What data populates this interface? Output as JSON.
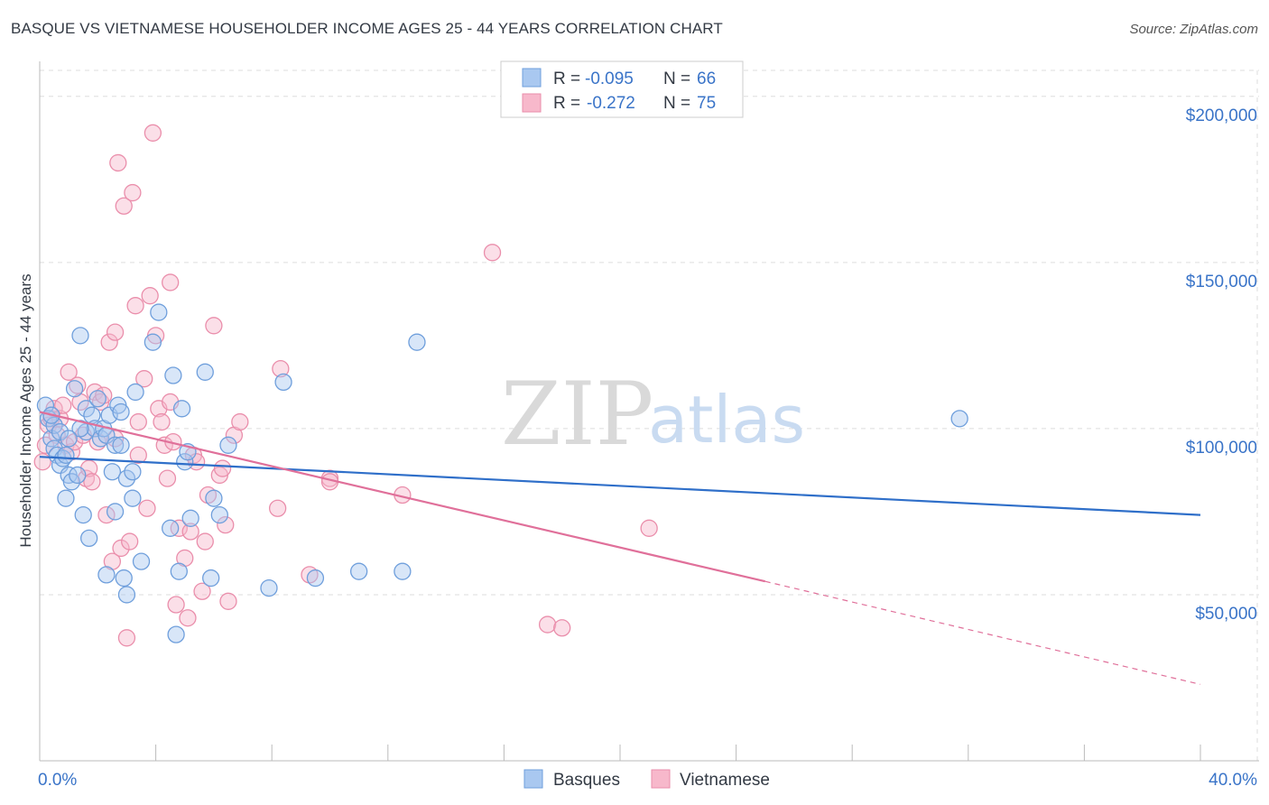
{
  "title": "BASQUE VS VIETNAMESE HOUSEHOLDER INCOME AGES 25 - 44 YEARS CORRELATION CHART",
  "source": "Source: ZipAtlas.com",
  "watermark": {
    "zip": "ZIP",
    "atlas": "atlas"
  },
  "colors": {
    "basque_fill": "#a9c8f0",
    "basque_stroke": "#6f9fdc",
    "basque_line": "#2f6fc9",
    "viet_fill": "#f7b8cb",
    "viet_stroke": "#ea8eab",
    "viet_line": "#e0709a",
    "grid": "#dddddd",
    "axis_text": "#3a74c8"
  },
  "legend": {
    "r_label": "R =",
    "n_label": "N =",
    "rows": [
      {
        "r": "-0.095",
        "n": "66"
      },
      {
        "r": "-0.272",
        "n": "75"
      }
    ]
  },
  "chart_data": {
    "type": "scatter",
    "title": "BASQUE VS VIETNAMESE HOUSEHOLDER INCOME AGES 25 - 44 YEARS CORRELATION CHART",
    "xlabel": "",
    "ylabel": "Householder Income Ages 25 - 44 years",
    "xlim": [
      0,
      40
    ],
    "ylim": [
      0,
      210000
    ],
    "x_tick_labels": [
      "0.0%",
      "40.0%"
    ],
    "y_ticks": [
      50000,
      100000,
      150000,
      200000
    ],
    "y_tick_labels": [
      "$50,000",
      "$100,000",
      "$150,000",
      "$200,000"
    ],
    "grid": true,
    "legend_position": "bottom-center",
    "series": [
      {
        "name": "Basques",
        "r": -0.095,
        "n": 66,
        "trend": {
          "x0": 0,
          "y0": 91500,
          "x1": 40,
          "y1": 74000
        },
        "points": [
          [
            0.2,
            107000
          ],
          [
            0.3,
            103000
          ],
          [
            0.4,
            97000
          ],
          [
            0.5,
            94000
          ],
          [
            0.5,
            101000
          ],
          [
            0.6,
            92000
          ],
          [
            0.7,
            89000
          ],
          [
            0.7,
            99000
          ],
          [
            0.8,
            91000
          ],
          [
            0.9,
            79000
          ],
          [
            0.9,
            92000
          ],
          [
            1.0,
            86000
          ],
          [
            1.1,
            84000
          ],
          [
            1.2,
            112000
          ],
          [
            1.3,
            86000
          ],
          [
            1.4,
            128000
          ],
          [
            1.5,
            74000
          ],
          [
            1.6,
            99000
          ],
          [
            1.6,
            106000
          ],
          [
            1.7,
            67000
          ],
          [
            1.8,
            104000
          ],
          [
            1.9,
            100000
          ],
          [
            2.0,
            109000
          ],
          [
            2.1,
            97000
          ],
          [
            2.2,
            100000
          ],
          [
            2.3,
            98000
          ],
          [
            2.3,
            56000
          ],
          [
            2.4,
            104000
          ],
          [
            2.5,
            87000
          ],
          [
            2.6,
            95000
          ],
          [
            2.6,
            75000
          ],
          [
            2.7,
            107000
          ],
          [
            2.8,
            105000
          ],
          [
            2.8,
            95000
          ],
          [
            2.9,
            55000
          ],
          [
            3.0,
            50000
          ],
          [
            3.0,
            85000
          ],
          [
            3.2,
            79000
          ],
          [
            3.2,
            87000
          ],
          [
            3.3,
            111000
          ],
          [
            3.5,
            60000
          ],
          [
            3.9,
            126000
          ],
          [
            4.1,
            135000
          ],
          [
            4.5,
            70000
          ],
          [
            4.6,
            116000
          ],
          [
            4.7,
            38000
          ],
          [
            4.8,
            57000
          ],
          [
            4.9,
            106000
          ],
          [
            5.0,
            90000
          ],
          [
            5.1,
            93000
          ],
          [
            5.2,
            73000
          ],
          [
            5.7,
            117000
          ],
          [
            5.9,
            55000
          ],
          [
            6.0,
            79000
          ],
          [
            6.2,
            74000
          ],
          [
            6.5,
            95000
          ],
          [
            7.9,
            52000
          ],
          [
            8.4,
            114000
          ],
          [
            9.5,
            55000
          ],
          [
            11.0,
            57000
          ],
          [
            12.5,
            57000
          ],
          [
            13.0,
            126000
          ],
          [
            31.7,
            103000
          ],
          [
            1.4,
            100000
          ],
          [
            1.0,
            97000
          ],
          [
            0.4,
            104000
          ]
        ]
      },
      {
        "name": "Vietnamese",
        "r": -0.272,
        "n": 75,
        "trend": {
          "x0": 0,
          "y0": 105000,
          "x1": 25,
          "y1": 54000
        },
        "trend_dashed": {
          "x0": 25,
          "y0": 54000,
          "x1": 40,
          "y1": 23000
        },
        "points": [
          [
            0.1,
            90000
          ],
          [
            0.2,
            95000
          ],
          [
            0.3,
            101000
          ],
          [
            0.4,
            103000
          ],
          [
            0.5,
            106000
          ],
          [
            0.6,
            98000
          ],
          [
            0.7,
            103000
          ],
          [
            0.8,
            107000
          ],
          [
            0.9,
            95000
          ],
          [
            1.0,
            117000
          ],
          [
            1.1,
            93000
          ],
          [
            1.2,
            96000
          ],
          [
            1.3,
            113000
          ],
          [
            1.4,
            108000
          ],
          [
            1.5,
            98000
          ],
          [
            1.6,
            85000
          ],
          [
            1.7,
            88000
          ],
          [
            1.8,
            84000
          ],
          [
            1.9,
            111000
          ],
          [
            2.0,
            96000
          ],
          [
            2.1,
            108000
          ],
          [
            2.2,
            110000
          ],
          [
            2.3,
            74000
          ],
          [
            2.4,
            126000
          ],
          [
            2.5,
            60000
          ],
          [
            2.6,
            97000
          ],
          [
            2.6,
            129000
          ],
          [
            2.7,
            180000
          ],
          [
            2.8,
            64000
          ],
          [
            2.9,
            167000
          ],
          [
            3.0,
            37000
          ],
          [
            3.1,
            66000
          ],
          [
            3.2,
            171000
          ],
          [
            3.3,
            137000
          ],
          [
            3.4,
            92000
          ],
          [
            3.4,
            102000
          ],
          [
            3.6,
            115000
          ],
          [
            3.7,
            76000
          ],
          [
            3.8,
            140000
          ],
          [
            3.9,
            189000
          ],
          [
            4.0,
            128000
          ],
          [
            4.1,
            106000
          ],
          [
            4.2,
            102000
          ],
          [
            4.3,
            95000
          ],
          [
            4.4,
            85000
          ],
          [
            4.5,
            108000
          ],
          [
            4.5,
            144000
          ],
          [
            4.6,
            96000
          ],
          [
            4.7,
            47000
          ],
          [
            4.8,
            70000
          ],
          [
            5.0,
            61000
          ],
          [
            5.1,
            43000
          ],
          [
            5.2,
            69000
          ],
          [
            5.3,
            92000
          ],
          [
            5.4,
            90000
          ],
          [
            5.6,
            51000
          ],
          [
            5.7,
            66000
          ],
          [
            5.8,
            80000
          ],
          [
            6.0,
            131000
          ],
          [
            6.2,
            86000
          ],
          [
            6.3,
            88000
          ],
          [
            6.4,
            71000
          ],
          [
            6.5,
            48000
          ],
          [
            6.7,
            98000
          ],
          [
            6.9,
            102000
          ],
          [
            8.2,
            76000
          ],
          [
            8.3,
            118000
          ],
          [
            9.3,
            56000
          ],
          [
            10.0,
            85000
          ],
          [
            10.0,
            84000
          ],
          [
            12.5,
            80000
          ],
          [
            15.6,
            153000
          ],
          [
            17.5,
            41000
          ],
          [
            18.0,
            40000
          ],
          [
            21.0,
            70000
          ]
        ]
      }
    ]
  }
}
